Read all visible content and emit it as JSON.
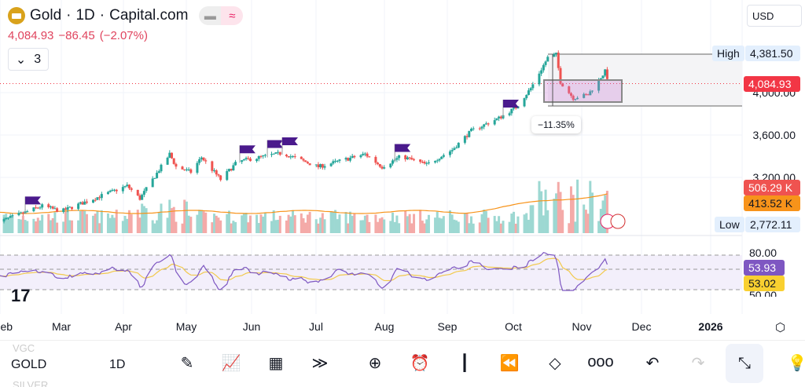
{
  "header": {
    "symbol": "Gold",
    "interval": "1D",
    "broker": "Capital.com",
    "separator": " · ",
    "price": "4,084.93",
    "change": "−86.45",
    "change_pct": "(−2.07%)",
    "indicators_collapsed_count": "3",
    "currency": "USD"
  },
  "price_axis": {
    "ticks": [
      {
        "value": 4000,
        "label": "4,000.00"
      },
      {
        "value": 3600,
        "label": "3,600.00"
      },
      {
        "value": 3200,
        "label": "3,200.00"
      }
    ],
    "high_label": "High",
    "high_value": "4,381.50",
    "low_label": "Low",
    "low_value": "2,772.11",
    "last_price": "4,084.93",
    "volume": "506.29 K",
    "volume_ma": "413.52 K",
    "rsi_80": "80.00",
    "rsi": "53.93",
    "rsi_ma": "53.02",
    "rsi_50": "50.00"
  },
  "measure_label": "−11.35%",
  "time_axis": [
    "Feb",
    "Mar",
    "Apr",
    "May",
    "Jun",
    "Jul",
    "Aug",
    "Sep",
    "Oct",
    "Nov",
    "Dec",
    "2026"
  ],
  "bottom_bar": {
    "prev_symbol": "VGC",
    "symbol": "GOLD",
    "next_symbol": "SILVER",
    "interval": "1D"
  },
  "colors": {
    "up": "#26a69a",
    "down": "#ef5350",
    "last": "#f23645",
    "vol_ma": "#f7931a",
    "rsi": "#7e57c2",
    "rsi_ma": "#f2c94c",
    "flag": "#4a1a8c"
  },
  "chart_data": {
    "type": "candlestick",
    "series_anchors": [
      [
        "2025-01-28",
        2760
      ],
      [
        "2025-02-20",
        2930
      ],
      [
        "2025-03-01",
        2880
      ],
      [
        "2025-03-15",
        2990
      ],
      [
        "2025-04-01",
        3120
      ],
      [
        "2025-04-07",
        3000
      ],
      [
        "2025-04-21",
        3420
      ],
      [
        "2025-04-24",
        3300
      ],
      [
        "2025-05-01",
        3250
      ],
      [
        "2025-05-06",
        3390
      ],
      [
        "2025-05-15",
        3180
      ],
      [
        "2025-05-23",
        3350
      ],
      [
        "2025-06-13",
        3430
      ],
      [
        "2025-06-30",
        3300
      ],
      [
        "2025-07-22",
        3420
      ],
      [
        "2025-07-30",
        3300
      ],
      [
        "2025-08-08",
        3400
      ],
      [
        "2025-08-20",
        3320
      ],
      [
        "2025-09-01",
        3460
      ],
      [
        "2025-09-10",
        3640
      ],
      [
        "2025-09-23",
        3760
      ],
      [
        "2025-10-01",
        3860
      ],
      [
        "2025-10-08",
        4040
      ],
      [
        "2025-10-16",
        4330
      ],
      [
        "2025-10-20",
        4360
      ],
      [
        "2025-10-22",
        4100
      ],
      [
        "2025-10-28",
        3950
      ],
      [
        "2025-11-04",
        3980
      ],
      [
        "2025-11-12",
        4200
      ],
      [
        "2025-11-14",
        4084.93
      ]
    ],
    "flags": [
      "2025-02-12",
      "2025-05-24",
      "2025-06-06",
      "2025-06-13",
      "2025-08-05",
      "2025-09-25"
    ]
  }
}
